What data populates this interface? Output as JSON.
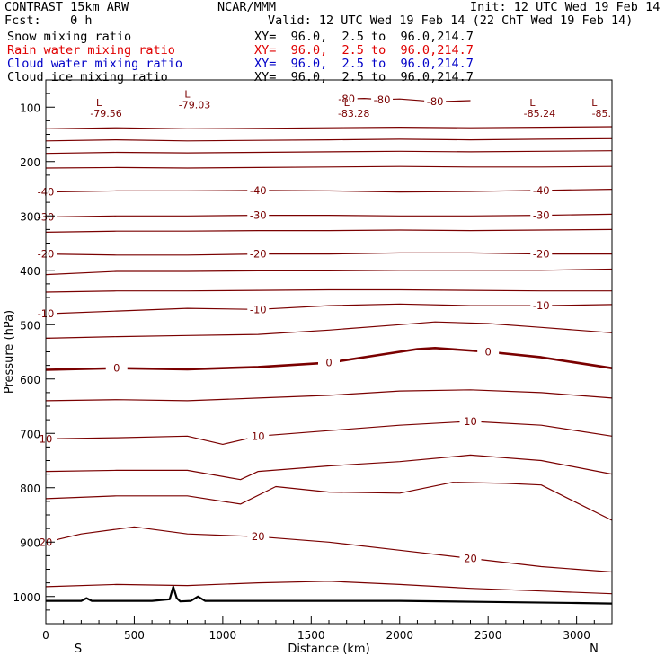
{
  "header": {
    "model": "CONTRAST 15km ARW",
    "org": "NCAR/MMM",
    "init": "Init: 12 UTC Wed 19 Feb 14",
    "fcst": "Fcst:    0 h",
    "valid": "Valid: 12 UTC Wed 19 Feb 14 (22 ChT Wed 19 Feb 14)",
    "fields": [
      {
        "name": "Snow mixing ratio",
        "xy": "XY=  96.0,  2.5 to  96.0,214.7",
        "color": "#000000"
      },
      {
        "name": "Rain water mixing ratio",
        "xy": "XY=  96.0,  2.5 to  96.0,214.7",
        "color": "#e00000"
      },
      {
        "name": "Cloud water mixing ratio",
        "xy": "XY=  96.0,  2.5 to  96.0,214.7",
        "color": "#0000c8"
      },
      {
        "name": "Cloud ice mixing ratio",
        "xy": "XY=  96.0,  2.5 to  96.0,214.7",
        "color": "#000000"
      }
    ]
  },
  "chart_data": {
    "type": "line",
    "xlabel": "Distance (km)",
    "ylabel": "Pressure (hPa)",
    "xlim": [
      0,
      3200
    ],
    "ylim": [
      1050,
      50
    ],
    "x_ticks": [
      0,
      500,
      1000,
      1500,
      2000,
      2500,
      3000
    ],
    "x_tick_labels": [
      "0",
      "500",
      "1000",
      "1500",
      "2000",
      "2500",
      "3000"
    ],
    "y_ticks": [
      100,
      200,
      300,
      400,
      500,
      600,
      700,
      800,
      900,
      1000
    ],
    "y_tick_labels": [
      "100",
      "200",
      "300",
      "400",
      "500",
      "600",
      "700",
      "800",
      "900",
      "1000"
    ],
    "x_end_labels": {
      "left": "S",
      "right": "N"
    },
    "contour_color": "#7a0000",
    "ground_color": "#000000",
    "contours": [
      {
        "label": "-80",
        "bold": false,
        "points": [
          [
            1700,
            85
          ],
          [
            1800,
            84
          ],
          [
            1900,
            86
          ],
          [
            2000,
            85
          ],
          [
            2200,
            90
          ],
          [
            2400,
            88
          ]
        ]
      },
      {
        "label": "",
        "bold": false,
        "points": [
          [
            0,
            140
          ],
          [
            400,
            138
          ],
          [
            800,
            140
          ],
          [
            1200,
            139
          ],
          [
            1600,
            138
          ],
          [
            2000,
            137
          ],
          [
            2400,
            138
          ],
          [
            2800,
            137
          ],
          [
            3200,
            136
          ]
        ]
      },
      {
        "label": "",
        "bold": false,
        "points": [
          [
            0,
            162
          ],
          [
            400,
            160
          ],
          [
            800,
            162
          ],
          [
            1200,
            161
          ],
          [
            1600,
            160
          ],
          [
            2000,
            159
          ],
          [
            2400,
            160
          ],
          [
            2800,
            159
          ],
          [
            3200,
            158
          ]
        ]
      },
      {
        "label": "",
        "bold": false,
        "points": [
          [
            0,
            185
          ],
          [
            400,
            183
          ],
          [
            800,
            184
          ],
          [
            1200,
            183
          ],
          [
            1600,
            182
          ],
          [
            2000,
            181
          ],
          [
            2400,
            182
          ],
          [
            2800,
            181
          ],
          [
            3200,
            180
          ]
        ]
      },
      {
        "label": "",
        "bold": false,
        "points": [
          [
            0,
            212
          ],
          [
            400,
            211
          ],
          [
            800,
            212
          ],
          [
            1200,
            211
          ],
          [
            1600,
            210
          ],
          [
            2000,
            209
          ],
          [
            2400,
            210
          ],
          [
            2800,
            210
          ],
          [
            3200,
            209
          ]
        ]
      },
      {
        "label": "-40",
        "bold": false,
        "points": [
          [
            0,
            256
          ],
          [
            400,
            254
          ],
          [
            800,
            254
          ],
          [
            1200,
            253
          ],
          [
            1600,
            254
          ],
          [
            2000,
            256
          ],
          [
            2400,
            255
          ],
          [
            2800,
            253
          ],
          [
            3200,
            251
          ]
        ]
      },
      {
        "label": "-30",
        "bold": false,
        "points": [
          [
            0,
            302
          ],
          [
            400,
            300
          ],
          [
            800,
            300
          ],
          [
            1200,
            299
          ],
          [
            1600,
            299
          ],
          [
            2000,
            300
          ],
          [
            2400,
            300
          ],
          [
            2800,
            299
          ],
          [
            3200,
            297
          ]
        ]
      },
      {
        "label": "",
        "bold": false,
        "points": [
          [
            0,
            330
          ],
          [
            400,
            328
          ],
          [
            800,
            328
          ],
          [
            1200,
            327
          ],
          [
            1600,
            327
          ],
          [
            2000,
            326
          ],
          [
            2400,
            327
          ],
          [
            2800,
            326
          ],
          [
            3200,
            325
          ]
        ]
      },
      {
        "label": "-20",
        "bold": false,
        "points": [
          [
            0,
            370
          ],
          [
            400,
            372
          ],
          [
            800,
            372
          ],
          [
            1200,
            370
          ],
          [
            1600,
            370
          ],
          [
            2000,
            368
          ],
          [
            2400,
            368
          ],
          [
            2800,
            370
          ],
          [
            3200,
            370
          ]
        ]
      },
      {
        "label": "",
        "bold": false,
        "points": [
          [
            0,
            408
          ],
          [
            400,
            402
          ],
          [
            800,
            402
          ],
          [
            1200,
            401
          ],
          [
            1600,
            401
          ],
          [
            2000,
            400
          ],
          [
            2400,
            400
          ],
          [
            2800,
            400
          ],
          [
            3200,
            398
          ]
        ]
      },
      {
        "label": "",
        "bold": false,
        "points": [
          [
            0,
            440
          ],
          [
            400,
            438
          ],
          [
            800,
            438
          ],
          [
            1200,
            437
          ],
          [
            1600,
            436
          ],
          [
            2000,
            436
          ],
          [
            2400,
            437
          ],
          [
            2800,
            438
          ],
          [
            3200,
            438
          ]
        ]
      },
      {
        "label": "-10",
        "bold": false,
        "points": [
          [
            0,
            480
          ],
          [
            400,
            475
          ],
          [
            800,
            470
          ],
          [
            1200,
            472
          ],
          [
            1600,
            465
          ],
          [
            2000,
            462
          ],
          [
            2400,
            465
          ],
          [
            2800,
            465
          ],
          [
            3200,
            463
          ]
        ]
      },
      {
        "label": "",
        "bold": false,
        "points": [
          [
            0,
            525
          ],
          [
            400,
            522
          ],
          [
            800,
            520
          ],
          [
            1200,
            518
          ],
          [
            1600,
            510
          ],
          [
            2000,
            500
          ],
          [
            2200,
            495
          ],
          [
            2500,
            498
          ],
          [
            2800,
            505
          ],
          [
            3200,
            515
          ]
        ]
      },
      {
        "label": "0",
        "bold": true,
        "points": [
          [
            0,
            583
          ],
          [
            400,
            580
          ],
          [
            800,
            582
          ],
          [
            1200,
            578
          ],
          [
            1600,
            570
          ],
          [
            1900,
            555
          ],
          [
            2100,
            545
          ],
          [
            2200,
            543
          ],
          [
            2500,
            550
          ],
          [
            2800,
            560
          ],
          [
            3200,
            580
          ]
        ]
      },
      {
        "label": "",
        "bold": false,
        "points": [
          [
            0,
            640
          ],
          [
            400,
            638
          ],
          [
            800,
            640
          ],
          [
            1200,
            635
          ],
          [
            1600,
            630
          ],
          [
            2000,
            622
          ],
          [
            2400,
            620
          ],
          [
            2800,
            625
          ],
          [
            3200,
            635
          ]
        ]
      },
      {
        "label": "10",
        "bold": false,
        "points": [
          [
            0,
            710
          ],
          [
            400,
            708
          ],
          [
            800,
            705
          ],
          [
            1000,
            720
          ],
          [
            1200,
            705
          ],
          [
            1600,
            695
          ],
          [
            2000,
            685
          ],
          [
            2400,
            678
          ],
          [
            2800,
            685
          ],
          [
            3200,
            705
          ]
        ]
      },
      {
        "label": "",
        "bold": false,
        "points": [
          [
            0,
            770
          ],
          [
            400,
            768
          ],
          [
            800,
            768
          ],
          [
            1100,
            785
          ],
          [
            1200,
            770
          ],
          [
            1600,
            760
          ],
          [
            2000,
            752
          ],
          [
            2400,
            740
          ],
          [
            2800,
            750
          ],
          [
            3200,
            775
          ]
        ]
      },
      {
        "label": "",
        "bold": false,
        "points": [
          [
            0,
            820
          ],
          [
            400,
            815
          ],
          [
            800,
            815
          ],
          [
            1100,
            830
          ],
          [
            1300,
            798
          ],
          [
            1600,
            808
          ],
          [
            2000,
            810
          ],
          [
            2300,
            790
          ],
          [
            2600,
            792
          ],
          [
            2800,
            795
          ],
          [
            3200,
            860
          ]
        ]
      },
      {
        "label": "20",
        "bold": false,
        "points": [
          [
            0,
            900
          ],
          [
            200,
            885
          ],
          [
            500,
            872
          ],
          [
            800,
            885
          ],
          [
            1200,
            890
          ],
          [
            1600,
            900
          ],
          [
            2000,
            915
          ],
          [
            2400,
            930
          ],
          [
            2800,
            945
          ],
          [
            3200,
            955
          ]
        ]
      },
      {
        "label": "",
        "bold": false,
        "points": [
          [
            0,
            982
          ],
          [
            400,
            978
          ],
          [
            800,
            980
          ],
          [
            1200,
            975
          ],
          [
            1600,
            972
          ],
          [
            2000,
            978
          ],
          [
            2400,
            985
          ],
          [
            2800,
            990
          ],
          [
            3200,
            995
          ]
        ]
      }
    ],
    "low_labels": [
      {
        "letter": "L",
        "value": "-79.56",
        "x": 300,
        "p": 98
      },
      {
        "letter": "L",
        "value": "-79.03",
        "x": 800,
        "p": 82
      },
      {
        "letter": "L",
        "value": "-83.28",
        "x": 1700,
        "p": 98
      },
      {
        "letter": "L",
        "value": "-85.24",
        "x": 2750,
        "p": 98
      },
      {
        "letter": "L",
        "value": "-85.",
        "x": 3100,
        "p": 98
      }
    ],
    "ground": [
      [
        0,
        1008
      ],
      [
        200,
        1008
      ],
      [
        230,
        1003
      ],
      [
        260,
        1008
      ],
      [
        600,
        1008
      ],
      [
        700,
        1005
      ],
      [
        720,
        982
      ],
      [
        740,
        1003
      ],
      [
        760,
        1009
      ],
      [
        820,
        1008
      ],
      [
        860,
        1000
      ],
      [
        900,
        1008
      ],
      [
        1500,
        1008
      ],
      [
        2000,
        1008
      ],
      [
        2500,
        1010
      ],
      [
        3000,
        1012
      ],
      [
        3200,
        1013
      ]
    ]
  }
}
